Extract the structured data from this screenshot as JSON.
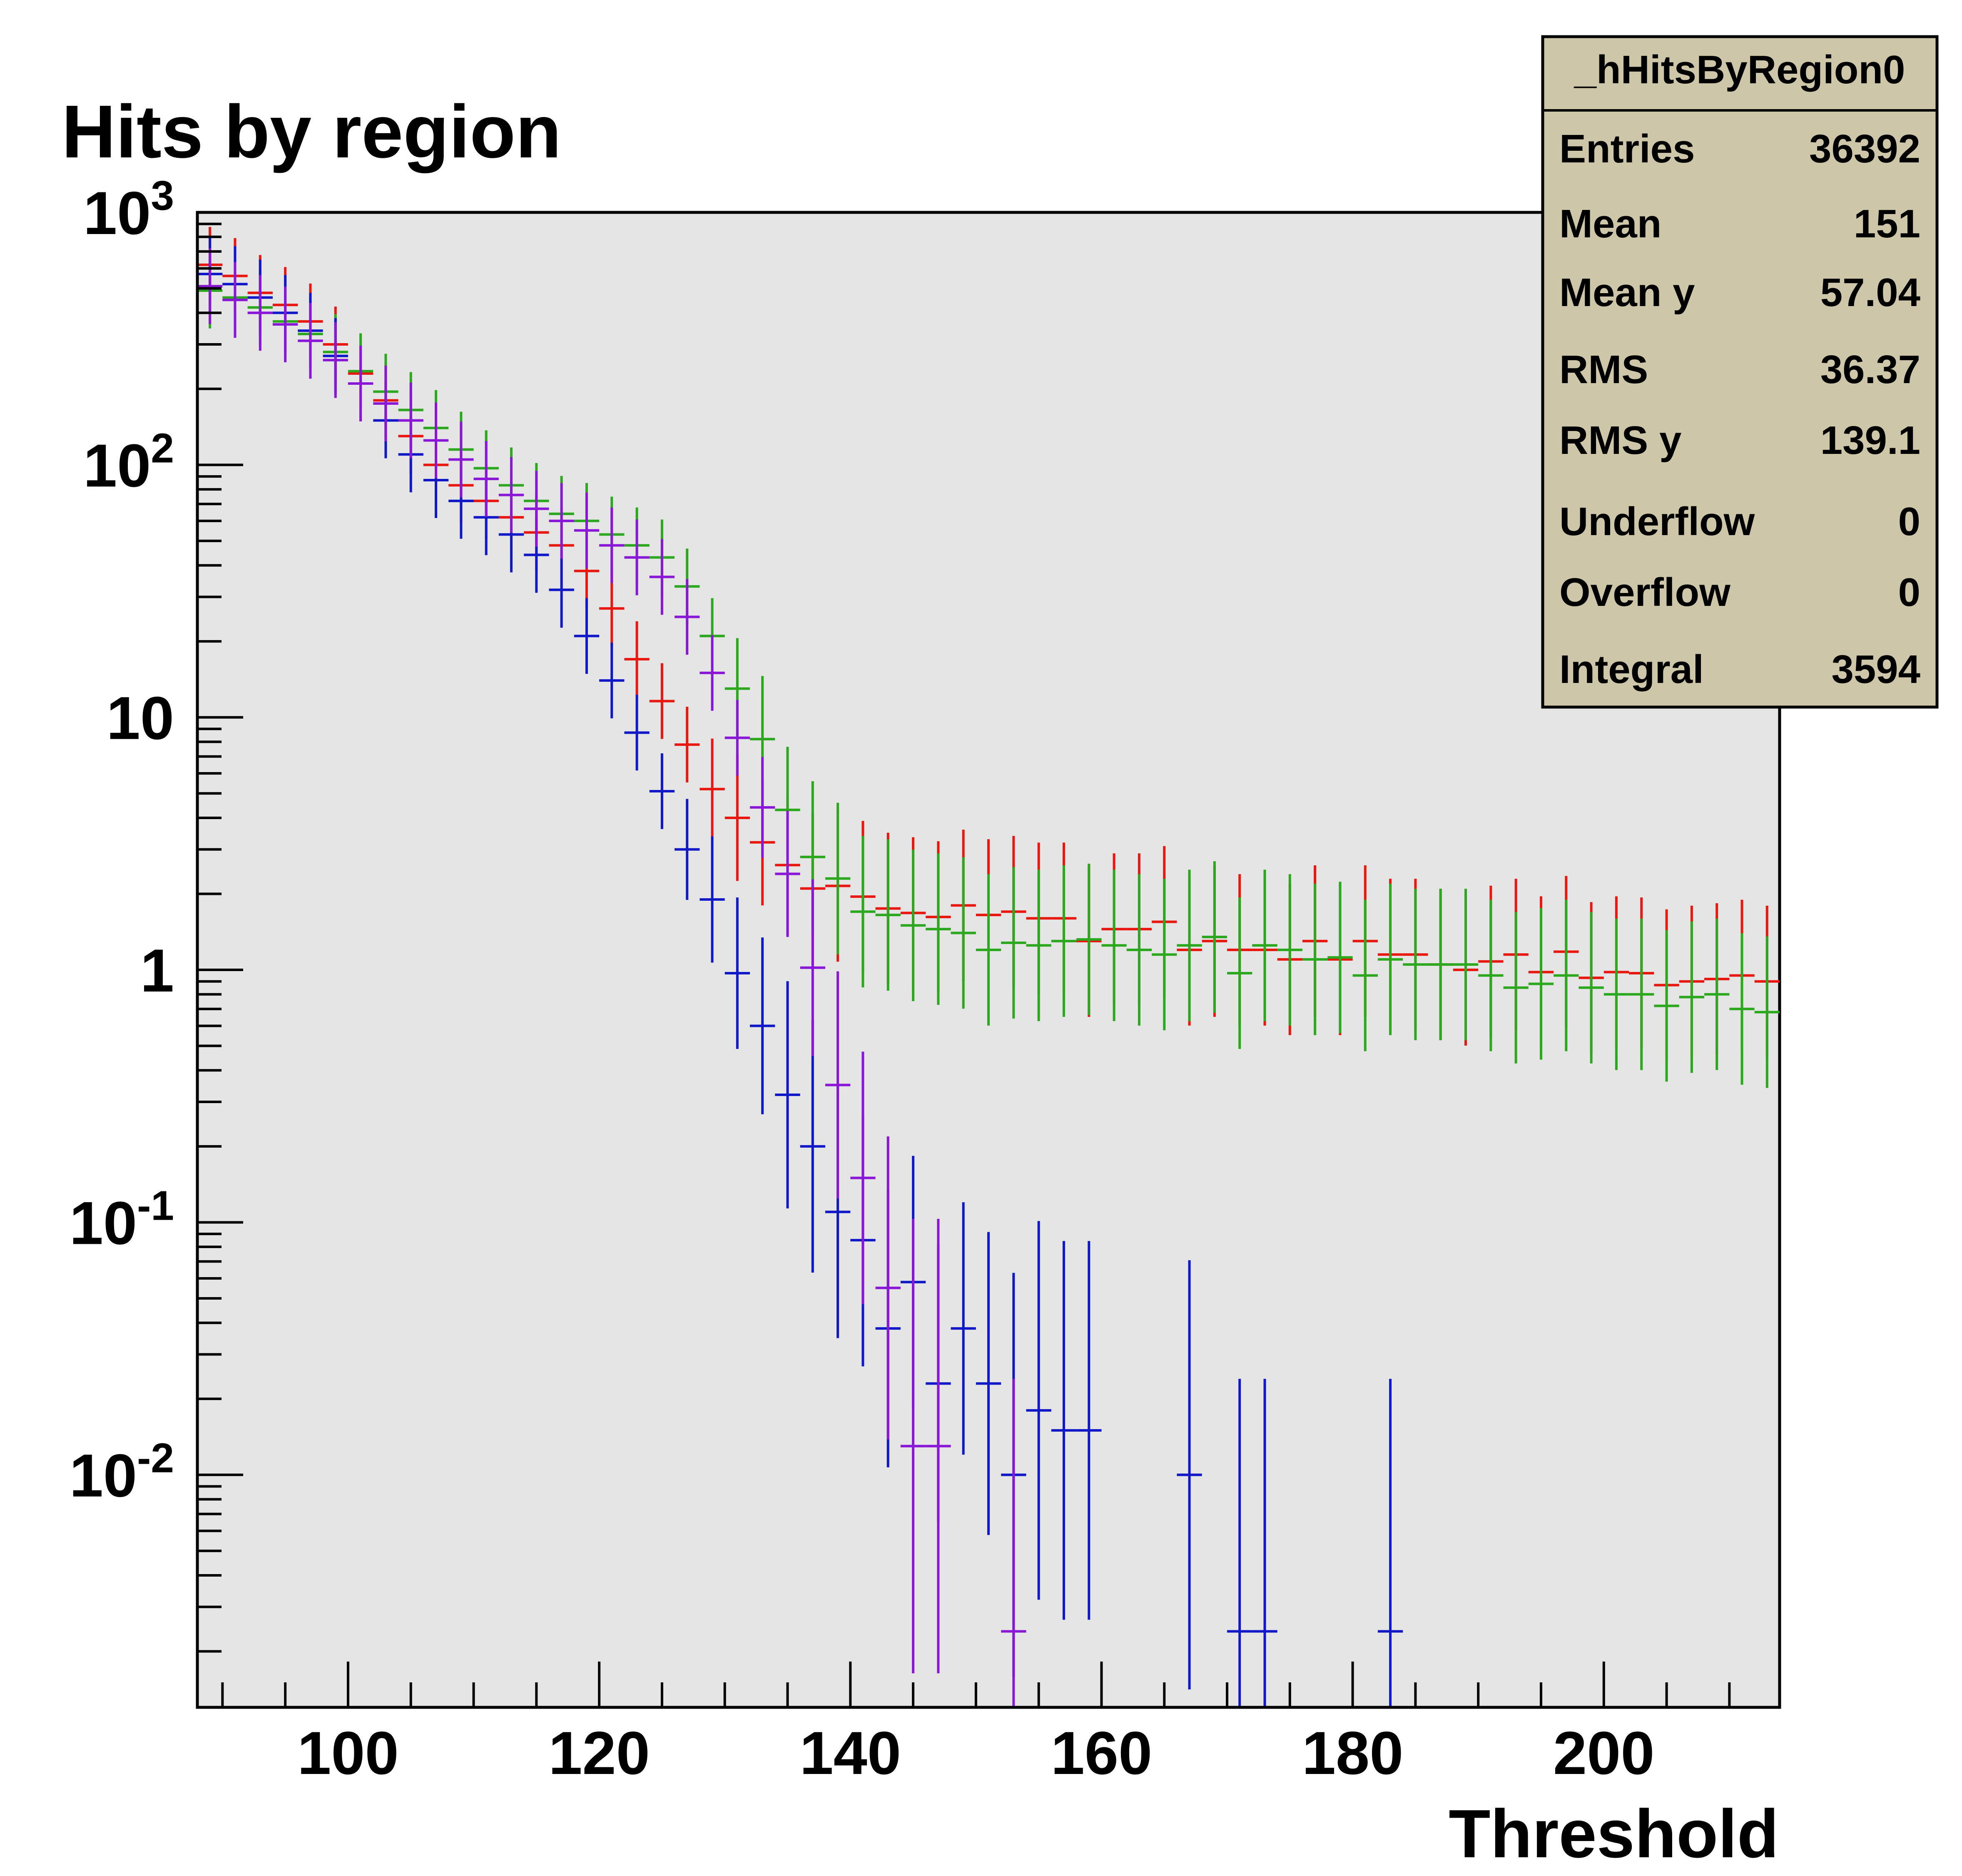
{
  "chart_data": {
    "type": "scatter",
    "title": "Hits by region",
    "xlabel": "Threshold",
    "ylabel": "",
    "xlim": [
      88,
      214
    ],
    "ylim": [
      0.0012,
      1000
    ],
    "y_scale": "log",
    "x_ticks": [
      "100",
      "120",
      "140",
      "160",
      "180",
      "200"
    ],
    "y_ticks": [
      {
        "mantissa": "10",
        "exp": "3"
      },
      {
        "mantissa": "10",
        "exp": "2"
      },
      {
        "mantissa": "10",
        "exp": ""
      },
      {
        "mantissa": "1",
        "exp": ""
      },
      {
        "mantissa": "10",
        "exp": "-1"
      },
      {
        "mantissa": "10",
        "exp": "-2"
      }
    ],
    "bin_width": 2,
    "grid": false,
    "stats_box": {
      "name": "_hHitsByRegion0",
      "rows": [
        {
          "label": "Entries",
          "value": "36392"
        },
        {
          "label": "Mean",
          "value": "151"
        },
        {
          "label": "Mean y",
          "value": "57.04"
        },
        {
          "label": "RMS",
          "value": "36.37"
        },
        {
          "label": "RMS y",
          "value": "139.1"
        },
        {
          "label": "Underflow",
          "value": "0"
        },
        {
          "label": "Overflow",
          "value": "0"
        },
        {
          "label": "Integral",
          "value": "3594"
        }
      ]
    },
    "series": [
      {
        "color": "#e8170f",
        "x": [
          89,
          91,
          93,
          95,
          97,
          99,
          101,
          103,
          105,
          107,
          109,
          111,
          113,
          115,
          117,
          119,
          121,
          123,
          125,
          127,
          129,
          131,
          133,
          135,
          137,
          139,
          141,
          143,
          145,
          147,
          149,
          151,
          153,
          155,
          157,
          159,
          161,
          163,
          165,
          167,
          169,
          171,
          173,
          175,
          177,
          179,
          181,
          183,
          185,
          187,
          189,
          191,
          193,
          195,
          197,
          199,
          201,
          203,
          205,
          207,
          209,
          211,
          213
        ],
        "y": [
          620,
          560,
          480,
          430,
          370,
          300,
          230,
          180,
          130,
          100,
          83,
          72,
          62,
          54,
          48,
          38,
          27,
          17,
          11.6,
          7.8,
          5.2,
          4.0,
          3.2,
          2.6,
          2.1,
          2.15,
          1.95,
          1.75,
          1.68,
          1.62,
          1.8,
          1.65,
          1.7,
          1.6,
          1.6,
          1.3,
          1.45,
          1.45,
          1.55,
          1.2,
          1.3,
          1.2,
          1.2,
          1.1,
          1.3,
          1.1,
          1.3,
          1.15,
          1.15,
          1.05,
          1.0,
          1.08,
          1.15,
          0.98,
          1.18,
          0.93,
          0.98,
          0.97,
          0.87,
          0.9,
          0.92,
          0.95,
          0.9
        ],
        "err": [
          0.15,
          0.15,
          0.15,
          0.15,
          0.15,
          0.15,
          0.15,
          0.15,
          0.15,
          0.15,
          0.15,
          0.15,
          0.15,
          0.15,
          0.15,
          0.15,
          0.15,
          0.15,
          0.15,
          0.15,
          0.2,
          0.25,
          0.25,
          0.28,
          0.3,
          0.3,
          0.3,
          0.3,
          0.3,
          0.3,
          0.3,
          0.3,
          0.3,
          0.3,
          0.3,
          0.3,
          0.3,
          0.3,
          0.3,
          0.3,
          0.3,
          0.3,
          0.3,
          0.3,
          0.3,
          0.3,
          0.3,
          0.3,
          0.3,
          0.3,
          0.3,
          0.3,
          0.3,
          0.3,
          0.3,
          0.3,
          0.3,
          0.3,
          0.3,
          0.3,
          0.3,
          0.3,
          0.3
        ]
      },
      {
        "color": "#2ca81e",
        "x": [
          89,
          91,
          93,
          95,
          97,
          99,
          101,
          103,
          105,
          107,
          109,
          111,
          113,
          115,
          117,
          119,
          121,
          123,
          125,
          127,
          129,
          131,
          133,
          135,
          137,
          139,
          141,
          143,
          145,
          147,
          149,
          151,
          153,
          155,
          157,
          159,
          161,
          163,
          165,
          167,
          169,
          171,
          173,
          175,
          177,
          179,
          181,
          183,
          185,
          187,
          189,
          191,
          193,
          195,
          197,
          199,
          201,
          203,
          205,
          207,
          209,
          211,
          213
        ],
        "y": [
          490,
          460,
          420,
          370,
          330,
          280,
          235,
          195,
          165,
          140,
          115,
          97,
          83,
          72,
          64,
          60,
          53,
          48,
          43,
          33,
          21,
          13,
          8.2,
          4.3,
          2.8,
          2.3,
          1.7,
          1.65,
          1.5,
          1.45,
          1.4,
          1.2,
          1.28,
          1.25,
          1.3,
          1.32,
          1.25,
          1.2,
          1.15,
          1.25,
          1.35,
          0.97,
          1.25,
          1.2,
          1.1,
          1.12,
          0.95,
          1.1,
          1.05,
          1.05,
          1.05,
          0.95,
          0.85,
          0.88,
          0.95,
          0.85,
          0.8,
          0.8,
          0.72,
          0.78,
          0.8,
          0.7,
          0.68
        ],
        "err": [
          0.15,
          0.15,
          0.15,
          0.15,
          0.15,
          0.15,
          0.15,
          0.15,
          0.15,
          0.15,
          0.15,
          0.15,
          0.15,
          0.15,
          0.15,
          0.15,
          0.15,
          0.15,
          0.15,
          0.15,
          0.15,
          0.2,
          0.25,
          0.25,
          0.3,
          0.3,
          0.3,
          0.3,
          0.3,
          0.3,
          0.3,
          0.3,
          0.3,
          0.3,
          0.3,
          0.3,
          0.3,
          0.3,
          0.3,
          0.3,
          0.3,
          0.3,
          0.3,
          0.3,
          0.3,
          0.3,
          0.3,
          0.3,
          0.3,
          0.3,
          0.3,
          0.3,
          0.3,
          0.3,
          0.3,
          0.3,
          0.3,
          0.3,
          0.3,
          0.3,
          0.3,
          0.3,
          0.3
        ]
      },
      {
        "color": "#1018c8",
        "x": [
          89,
          91,
          93,
          95,
          97,
          99,
          101,
          103,
          105,
          107,
          109,
          111,
          113,
          115,
          117,
          119,
          121,
          123,
          125,
          127,
          129,
          131,
          133,
          135,
          137,
          139,
          141,
          143,
          145,
          147,
          149,
          151,
          153,
          155,
          157,
          159,
          167,
          171,
          173,
          183
        ],
        "y": [
          570,
          520,
          460,
          400,
          340,
          270,
          210,
          150,
          110,
          87,
          72,
          62,
          53,
          44,
          32,
          21,
          14,
          8.7,
          5.1,
          3.0,
          1.9,
          0.97,
          0.6,
          0.32,
          0.2,
          0.11,
          0.085,
          0.038,
          0.058,
          0.023,
          0.038,
          0.023,
          0.01,
          0.018,
          0.015,
          0.015,
          0.01,
          0.0024,
          0.0024,
          0.0024
        ],
        "err": [
          0.15,
          0.15,
          0.15,
          0.15,
          0.15,
          0.15,
          0.15,
          0.15,
          0.15,
          0.15,
          0.15,
          0.15,
          0.15,
          0.15,
          0.15,
          0.15,
          0.15,
          0.15,
          0.15,
          0.2,
          0.25,
          0.3,
          0.35,
          0.45,
          0.5,
          0.5,
          0.5,
          0.55,
          0.5,
          0.55,
          0.5,
          0.6,
          0.8,
          0.75,
          0.75,
          0.75,
          0.85,
          1.0,
          1.0,
          1.0
        ]
      },
      {
        "color": "#8a17d8",
        "x": [
          89,
          91,
          93,
          95,
          97,
          99,
          101,
          103,
          105,
          107,
          109,
          111,
          113,
          115,
          117,
          119,
          121,
          123,
          125,
          127,
          129,
          131,
          133,
          135,
          137,
          139,
          141,
          143,
          145,
          147,
          153
        ],
        "y": [
          510,
          450,
          400,
          360,
          310,
          260,
          210,
          175,
          150,
          125,
          105,
          88,
          76,
          67,
          60,
          55,
          48,
          43,
          36,
          25,
          15,
          8.3,
          4.4,
          2.4,
          1.02,
          0.35,
          0.15,
          0.055,
          0.013,
          0.013,
          0.0024
        ],
        "err": [
          0.15,
          0.15,
          0.15,
          0.15,
          0.15,
          0.15,
          0.15,
          0.15,
          0.15,
          0.15,
          0.15,
          0.15,
          0.15,
          0.15,
          0.15,
          0.15,
          0.15,
          0.15,
          0.15,
          0.15,
          0.15,
          0.15,
          0.2,
          0.25,
          0.35,
          0.45,
          0.5,
          0.6,
          0.9,
          0.9,
          1.0
        ]
      }
    ]
  }
}
